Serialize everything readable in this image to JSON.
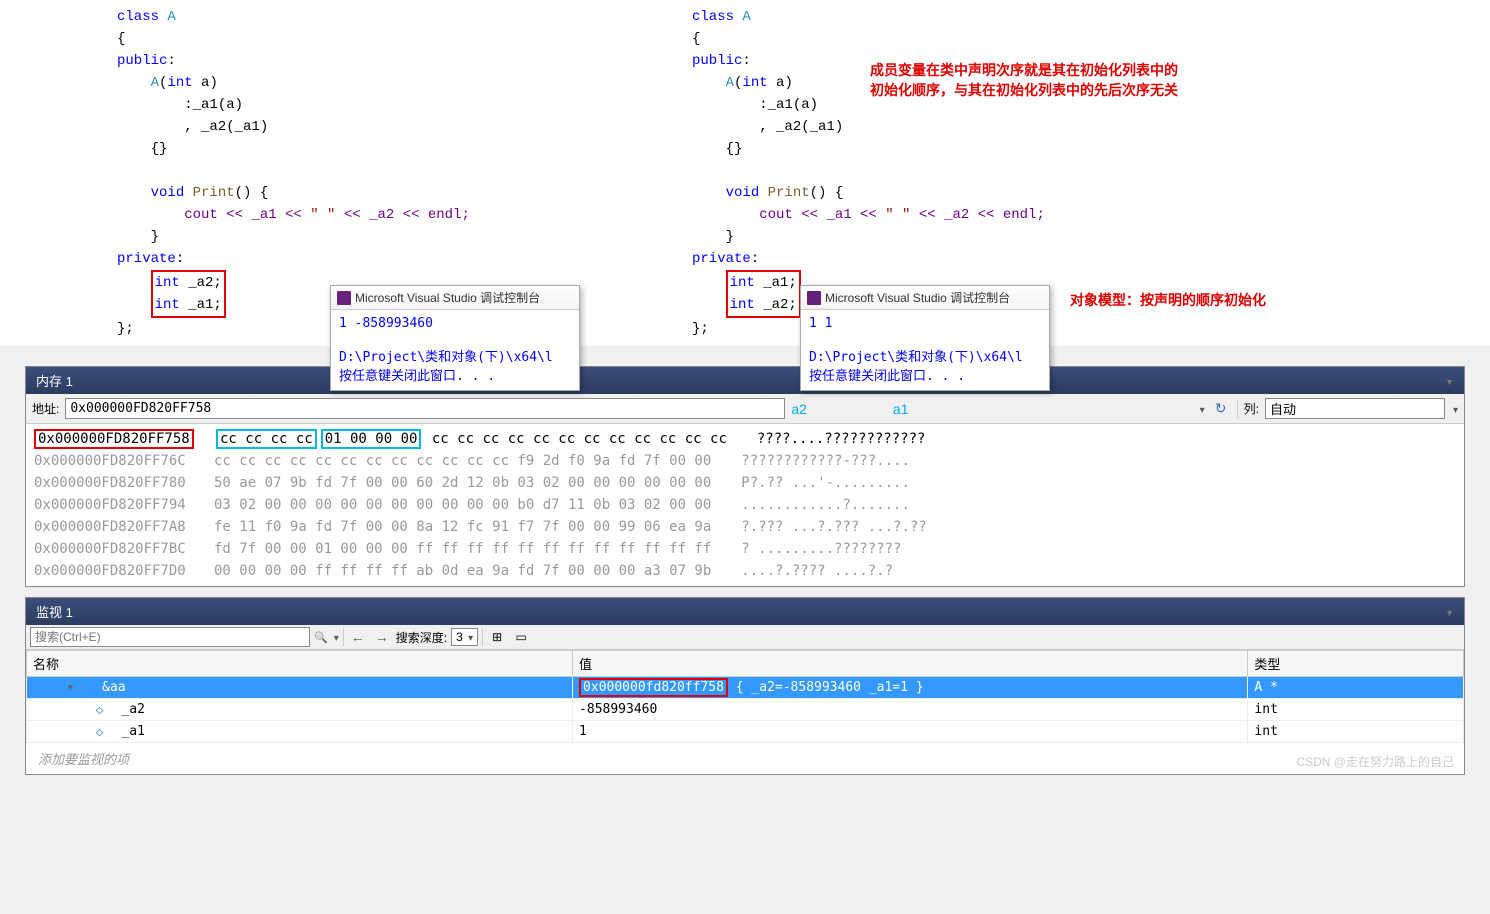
{
  "code_left": {
    "class_name": "A",
    "ctor_param": "a",
    "init_a1": "_a1(a)",
    "init_a2": "_a2(_a1)",
    "print_name": "Print",
    "cout_expr_pre": "cout << _a1 << ",
    "cout_str": "\" \"",
    "cout_expr_post": " << _a2 << endl;",
    "member1": "int _a2;",
    "member2": "int _a1;"
  },
  "code_right": {
    "class_name": "A",
    "ctor_param": "a",
    "init_a1": "_a1(a)",
    "init_a2": "_a2(_a1)",
    "print_name": "Print",
    "cout_expr_pre": "cout << _a1 << ",
    "cout_str": "\" \"",
    "cout_expr_post": " << _a2 << endl;",
    "member1": "int _a1;",
    "member2": "int _a2;"
  },
  "console": {
    "title": "Microsoft Visual Studio 调试控制台",
    "left_output": "1 -858993460",
    "right_output": "1 1",
    "path": "D:\\Project\\类和对象(下)\\x64\\l",
    "press_key": "按任意键关闭此窗口. . ."
  },
  "annotations": {
    "a1": "成员变量在类中声明次序就是其在初始化列表中的初始化顺序，与其在初始化列表中的先后次序无关",
    "a2": "对象模型：按声明的顺序初始化"
  },
  "memory": {
    "title": "内存 1",
    "addr_label": "地址:",
    "addr_value": "0x000000FD820FF758",
    "label_a2": "a2",
    "label_a1": "a1",
    "col_label": "列:",
    "col_value": "自动",
    "rows": [
      {
        "addr": "0x000000FD820FF758",
        "active": true,
        "bytes_boxed": [
          "cc cc cc cc",
          "01 00 00 00"
        ],
        "bytes": "cc cc cc cc cc cc cc cc cc cc cc cc",
        "ascii": "????....????????????"
      },
      {
        "addr": "0x000000FD820FF76C",
        "bytes": "cc cc cc cc cc cc cc cc cc cc cc cc f9 2d f0 9a fd 7f 00 00",
        "ascii": "????????????-???...."
      },
      {
        "addr": "0x000000FD820FF780",
        "bytes": "50 ae 07 9b fd 7f 00 00 60 2d 12 0b 03 02 00 00 00 00 00 00",
        "ascii": "P?.?? ...'-........."
      },
      {
        "addr": "0x000000FD820FF794",
        "bytes": "03 02 00 00 00 00 00 00 00 00 00 00 b0 d7 11 0b 03 02 00 00",
        "ascii": "............?......."
      },
      {
        "addr": "0x000000FD820FF7A8",
        "bytes": "fe 11 f0 9a fd 7f 00 00 8a 12 fc 91 f7 7f 00 00 99 06 ea 9a",
        "ascii": "?.??? ...?.??? ...?.??"
      },
      {
        "addr": "0x000000FD820FF7BC",
        "bytes": "fd 7f 00 00 01 00 00 00 ff ff ff ff ff ff ff ff ff ff ff ff",
        "ascii": "? .........????????"
      },
      {
        "addr": "0x000000FD820FF7D0",
        "bytes": "00 00 00 00 ff ff ff ff ab 0d ea 9a fd 7f 00 00 00 a3 07 9b",
        "ascii": "....?.???? ....?.?"
      }
    ]
  },
  "watch": {
    "title": "监视 1",
    "search_placeholder": "搜索(Ctrl+E)",
    "depth_label": "搜索深度:",
    "depth_value": "3",
    "col_name": "名称",
    "col_value": "值",
    "col_type": "类型",
    "rows": [
      {
        "name": "&aa",
        "value_boxed": "0x000000fd820ff758",
        "value_rest": " { _a2=-858993460 _a1=1 }",
        "type": "A *",
        "expanded": true,
        "selected": true,
        "level": 0
      },
      {
        "name": "_a2",
        "value": "-858993460",
        "type": "int",
        "level": 1
      },
      {
        "name": "_a1",
        "value": "1",
        "type": "int",
        "level": 1
      }
    ],
    "add_placeholder": "添加要监视的项"
  },
  "watermark": "CSDN @走在努力路上的自己"
}
